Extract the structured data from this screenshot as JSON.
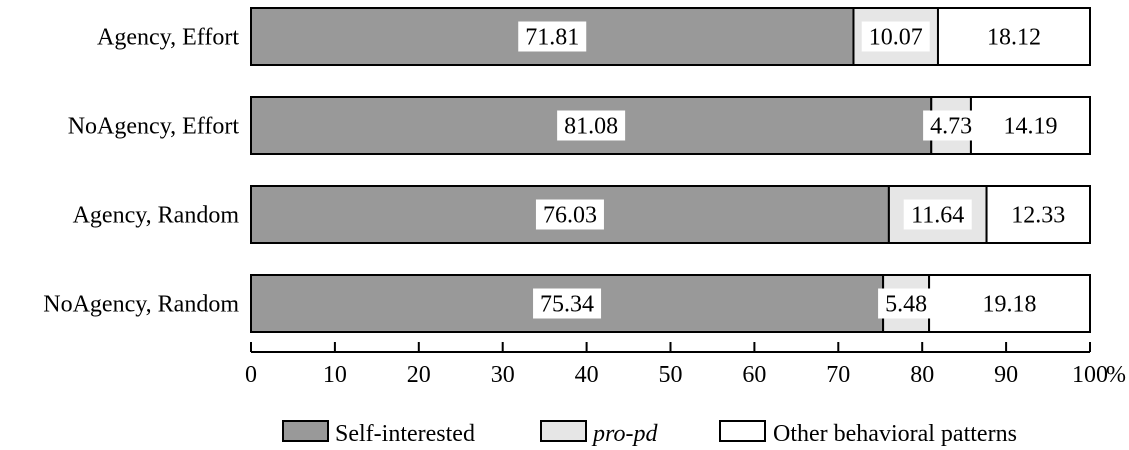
{
  "chart_data": {
    "type": "bar",
    "orientation": "horizontal",
    "stacked": true,
    "categories": [
      "Agency, Effort",
      "NoAgency, Effort",
      "Agency, Random",
      "NoAgency, Random"
    ],
    "series": [
      {
        "name": "Self-interested",
        "values": [
          71.81,
          81.08,
          76.03,
          75.34
        ],
        "labels": [
          "71.81",
          "81.08",
          "76.03",
          "75.34"
        ],
        "color": "#999999",
        "italic": false
      },
      {
        "name": "pro-pd",
        "values": [
          10.07,
          4.73,
          11.64,
          5.48
        ],
        "labels": [
          "10.07",
          "4.73",
          "11.64",
          "5.48"
        ],
        "color": "#e6e6e6",
        "italic": true
      },
      {
        "name": "Other behavioral patterns",
        "values": [
          18.12,
          14.19,
          12.33,
          19.18
        ],
        "labels": [
          "18.12",
          "14.19",
          "12.33",
          "19.18"
        ],
        "color": "#ffffff",
        "italic": false
      }
    ],
    "xlim": [
      0,
      100
    ],
    "xticks": [
      "0",
      "10",
      "20",
      "30",
      "40",
      "50",
      "60",
      "70",
      "80",
      "90",
      "100"
    ],
    "xunit": "%",
    "grid": false,
    "legend_position": "bottom"
  }
}
